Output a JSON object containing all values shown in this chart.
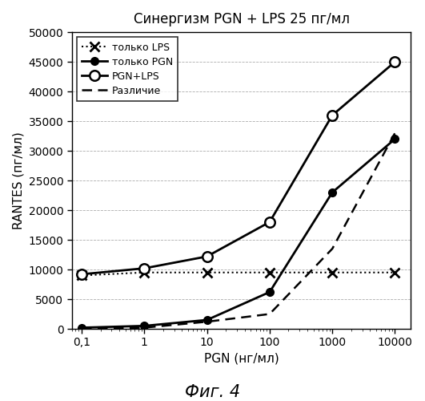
{
  "title": "Синергизм PGN + LPS 25 пг/мл",
  "xlabel": "PGN (нг/мл)",
  "ylabel": "RANTES (пг/мл)",
  "fig_label": "Фиг. 4",
  "x": [
    0.1,
    1,
    10,
    100,
    1000,
    10000
  ],
  "lps_only": [
    9000,
    9500,
    9500,
    9500,
    9500,
    9500
  ],
  "pgn_only": [
    200,
    500,
    1500,
    6200,
    23000,
    32000
  ],
  "pgn_lps": [
    9200,
    10200,
    12200,
    18000,
    36000,
    45000
  ],
  "difference": [
    0,
    200,
    1200,
    2500,
    13500,
    33000
  ],
  "ylim": [
    0,
    50000
  ],
  "yticks": [
    0,
    5000,
    10000,
    15000,
    20000,
    25000,
    30000,
    35000,
    40000,
    45000,
    50000
  ],
  "xticks": [
    0.1,
    1,
    10,
    100,
    1000,
    10000
  ],
  "xtick_labels": [
    "0,1",
    "1",
    "10",
    "100",
    "1000",
    "10000"
  ],
  "legend_labels": [
    "только LPS",
    "только PGN",
    "PGN+LPS",
    "Различие"
  ],
  "background_color": "#ffffff",
  "grid_color": "#888888"
}
